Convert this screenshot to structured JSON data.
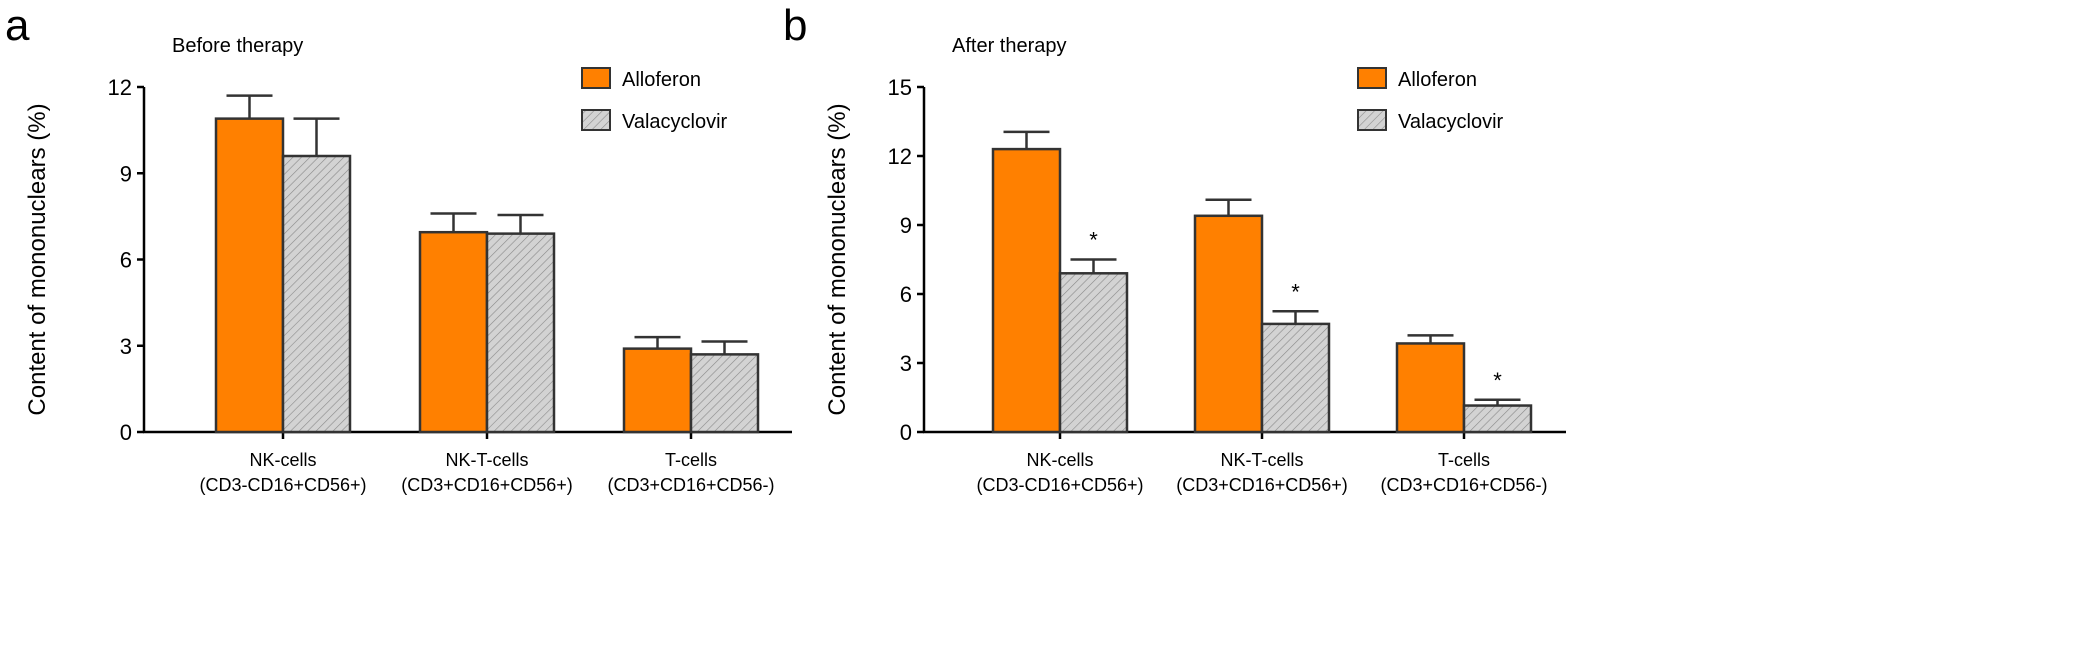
{
  "colors": {
    "alloferon": "#ff8000",
    "valacyclovir": "#d3d3d3",
    "outline": "#333333"
  },
  "chart_data": [
    {
      "type": "bar",
      "panel_label": "a",
      "title": "Before therapy",
      "ylabel": "Content of mononuclears (%)",
      "xlabel": "",
      "ylim": [
        0,
        12
      ],
      "yticks": [
        "0",
        "3",
        "6",
        "9",
        "12"
      ],
      "categories": [
        [
          "NK-cells",
          "(CD3-CD16+CD56+)"
        ],
        [
          "NK-T-cells",
          "(CD3+CD16+CD56+)"
        ],
        [
          "T-cells",
          "(CD3+CD16+CD56-)"
        ]
      ],
      "series": [
        {
          "name": "Alloferon",
          "values": [
            10.9,
            6.95,
            2.9
          ],
          "error": [
            0.8,
            0.65,
            0.4
          ]
        },
        {
          "name": "Valacyclovir",
          "values": [
            9.6,
            6.9,
            2.7
          ],
          "error": [
            1.3,
            0.65,
            0.45
          ]
        }
      ],
      "annotations": [],
      "legend": "top-right",
      "grid": false
    },
    {
      "type": "bar",
      "panel_label": "b",
      "title": "After therapy",
      "ylabel": "Content of mononuclears (%)",
      "xlabel": "",
      "ylim": [
        0,
        15
      ],
      "yticks": [
        "0",
        "3",
        "6",
        "9",
        "12",
        "15"
      ],
      "categories": [
        [
          "NK-cells",
          "(CD3-CD16+CD56+)"
        ],
        [
          "NK-T-cells",
          "(CD3+CD16+CD56+)"
        ],
        [
          "T-cells",
          "(CD3+CD16+CD56-)"
        ]
      ],
      "series": [
        {
          "name": "Alloferon",
          "values": [
            12.3,
            9.4,
            3.85
          ],
          "error": [
            0.75,
            0.7,
            0.35
          ]
        },
        {
          "name": "Valacyclovir",
          "values": [
            6.9,
            4.7,
            1.15
          ],
          "error": [
            0.6,
            0.55,
            0.25
          ]
        }
      ],
      "annotations": [
        {
          "series": "Valacyclovir",
          "category": 0,
          "text": "*"
        },
        {
          "series": "Valacyclovir",
          "category": 1,
          "text": "*"
        },
        {
          "series": "Valacyclovir",
          "category": 2,
          "text": "*"
        }
      ],
      "legend": "top-right",
      "grid": false
    }
  ]
}
